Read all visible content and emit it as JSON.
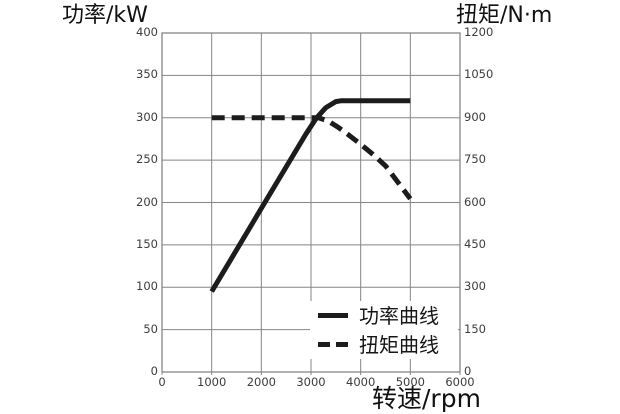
{
  "chart_data": {
    "type": "line",
    "left_axis_title": "功率/kW",
    "right_axis_title": "扭矩/N·m",
    "xlabel": "转速/rpm",
    "x_axis": {
      "min": 0,
      "max": 6000,
      "tick_values": [
        0,
        1000,
        2000,
        3000,
        4000,
        5000,
        6000
      ],
      "tick_labels": [
        "0",
        "1000",
        "2000",
        "3000",
        "4000",
        "5000",
        "6000"
      ],
      "grid": true
    },
    "left_axis": {
      "min": 0,
      "max": 400,
      "tick_step": 50,
      "tick_values": [
        0,
        50,
        100,
        150,
        200,
        250,
        300,
        350,
        400
      ],
      "tick_labels": [
        "0",
        "50",
        "100",
        "150",
        "200",
        "250",
        "300",
        "350",
        "400"
      ],
      "grid": true
    },
    "right_axis": {
      "min": 0,
      "max": 1200,
      "tick_step": 150,
      "tick_values": [
        0,
        150,
        300,
        450,
        600,
        750,
        900,
        1050,
        1200
      ],
      "tick_labels": [
        "0",
        "150",
        "300",
        "450",
        "600",
        "750",
        "900",
        "1050",
        "1200"
      ]
    },
    "legend": {
      "position": "inside-bottom-right",
      "items": [
        {
          "label": "功率曲线",
          "line_style": "solid"
        },
        {
          "label": "扭矩曲线",
          "line_style": "dashed"
        }
      ]
    },
    "series": [
      {
        "name": "功率曲线",
        "axis": "left",
        "unit": "kW",
        "line_style": "solid",
        "points": [
          [
            1000,
            95
          ],
          [
            1500,
            144
          ],
          [
            2000,
            193
          ],
          [
            2500,
            242
          ],
          [
            2900,
            281
          ],
          [
            3100,
            299
          ],
          [
            3300,
            312
          ],
          [
            3500,
            319
          ],
          [
            3600,
            320
          ],
          [
            5000,
            320
          ]
        ]
      },
      {
        "name": "扭矩曲线",
        "axis": "right",
        "unit": "N·m",
        "line_style": "dashed",
        "points": [
          [
            1000,
            900
          ],
          [
            3150,
            900
          ],
          [
            3350,
            888
          ],
          [
            3550,
            866
          ],
          [
            3750,
            840
          ],
          [
            4000,
            806
          ],
          [
            4250,
            770
          ],
          [
            4500,
            730
          ],
          [
            4750,
            672
          ],
          [
            5000,
            613
          ]
        ]
      }
    ],
    "colors": {
      "curve": "#1c1c1c",
      "grid": "#858585",
      "tick_text": "#3d3d3d",
      "title_text": "#111111",
      "background": "#ffffff"
    }
  }
}
